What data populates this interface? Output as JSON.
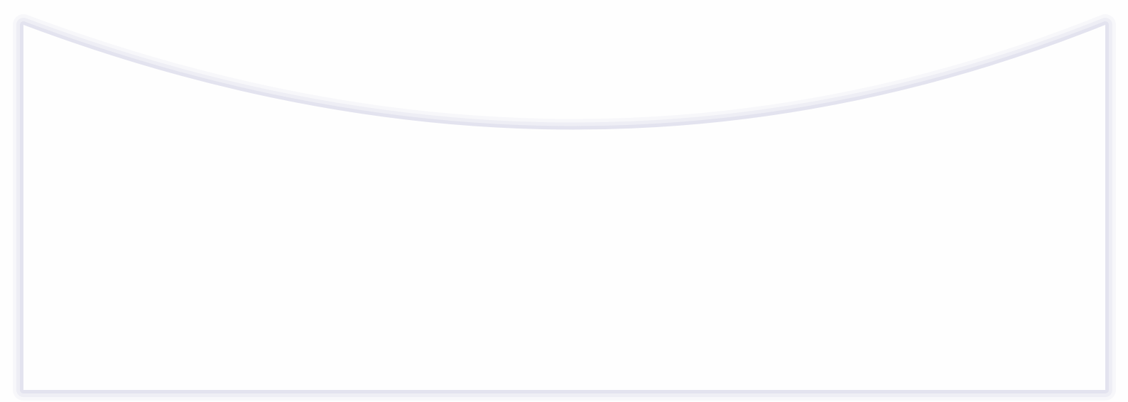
{
  "colors": {
    "background": "#fefefe",
    "card_fill": "#fefefe",
    "shadow": "#c8c8e0"
  }
}
